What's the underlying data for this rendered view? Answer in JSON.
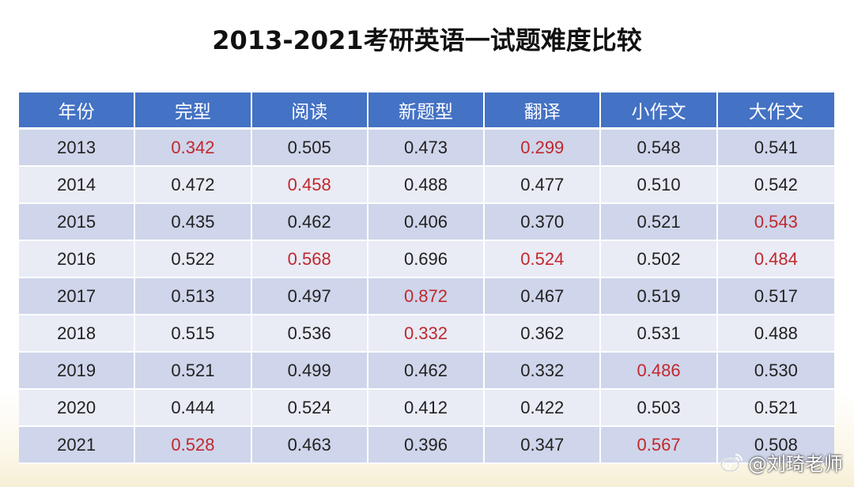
{
  "title": "2013-2021考研英语一试题难度比较",
  "watermark": "@刘琦老师",
  "colors": {
    "header_bg": "#4472c4",
    "row_dark": "#cfd5ea",
    "row_light": "#e9ebf5",
    "highlight": "#c0282d"
  },
  "chart_data": {
    "type": "table",
    "title": "2013-2021考研英语一试题难度比较",
    "columns": [
      "年份",
      "完型",
      "阅读",
      "新题型",
      "翻译",
      "小作文",
      "大作文"
    ],
    "rows": [
      {
        "cells": [
          "2013",
          "0.342",
          "0.505",
          "0.473",
          "0.299",
          "0.548",
          "0.541"
        ],
        "highlighted": [
          1,
          4
        ]
      },
      {
        "cells": [
          "2014",
          "0.472",
          "0.458",
          "0.488",
          "0.477",
          "0.510",
          "0.542"
        ],
        "highlighted": [
          2
        ]
      },
      {
        "cells": [
          "2015",
          "0.435",
          "0.462",
          "0.406",
          "0.370",
          "0.521",
          "0.543"
        ],
        "highlighted": [
          6
        ]
      },
      {
        "cells": [
          "2016",
          "0.522",
          "0.568",
          "0.696",
          "0.524",
          "0.502",
          "0.484"
        ],
        "highlighted": [
          2,
          4,
          6
        ]
      },
      {
        "cells": [
          "2017",
          "0.513",
          "0.497",
          "0.872",
          "0.467",
          "0.519",
          "0.517"
        ],
        "highlighted": [
          3
        ]
      },
      {
        "cells": [
          "2018",
          "0.515",
          "0.536",
          "0.332",
          "0.362",
          "0.531",
          "0.488"
        ],
        "highlighted": [
          3
        ]
      },
      {
        "cells": [
          "2019",
          "0.521",
          "0.499",
          "0.462",
          "0.332",
          "0.486",
          "0.530"
        ],
        "highlighted": [
          5
        ]
      },
      {
        "cells": [
          "2020",
          "0.444",
          "0.524",
          "0.412",
          "0.422",
          "0.503",
          "0.521"
        ],
        "highlighted": []
      },
      {
        "cells": [
          "2021",
          "0.528",
          "0.463",
          "0.396",
          "0.347",
          "0.567",
          "0.508"
        ],
        "highlighted": [
          1,
          5
        ]
      }
    ]
  }
}
